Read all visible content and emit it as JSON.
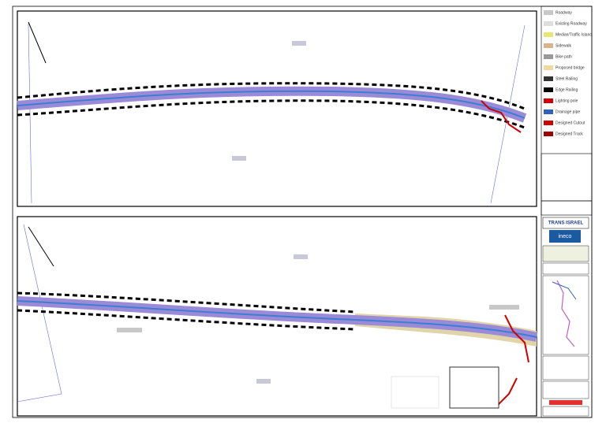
{
  "legend": {
    "items": [
      {
        "label": "Roadway",
        "color": "#c8c8c8"
      },
      {
        "label": "Existing Roadway",
        "color": "#dedede"
      },
      {
        "label": "Median/Traffic Island",
        "color": "#e8e870"
      },
      {
        "label": "Sidewalk",
        "color": "#d9b48a"
      },
      {
        "label": "Bike path",
        "color": "#999999"
      },
      {
        "label": "Proposed bridge",
        "color": "#f0d8a0"
      },
      {
        "label": "Steel Railing",
        "color": "#333333"
      },
      {
        "label": "Edge Railing",
        "color": "#000000"
      },
      {
        "label": "Lighting pole",
        "color": "#d00000"
      },
      {
        "label": "Drainage pipe",
        "color": "#3060c0"
      },
      {
        "label": "Designed Cutout",
        "color": "#d00000"
      },
      {
        "label": "Designed Track",
        "color": "#a00000"
      }
    ]
  },
  "logos": {
    "client": "TRANS ISRAEL",
    "consultant": "ineco"
  }
}
